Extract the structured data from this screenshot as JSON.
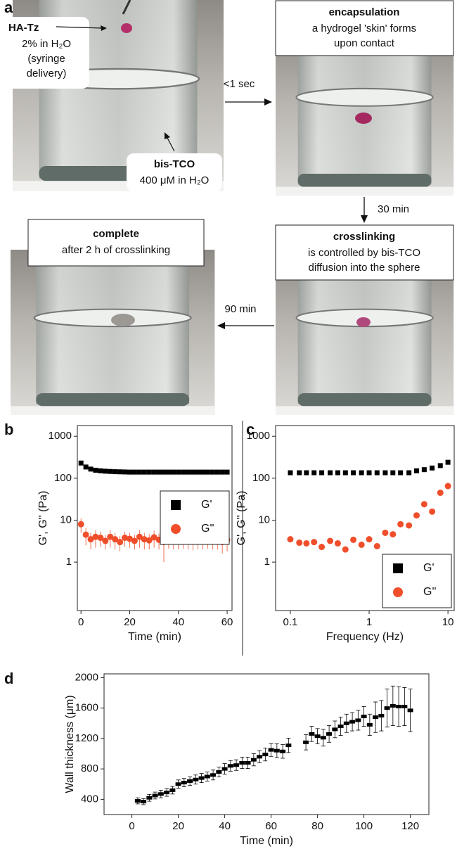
{
  "panel_a": {
    "label": "a",
    "sample": {
      "name": "HA-Tz",
      "lines": [
        "2% in H₂O",
        "(syringe",
        "delivery)"
      ]
    },
    "bath": {
      "name": "bis-TCO",
      "detail": "400 μM in H₂O"
    },
    "steps": [
      {
        "title": "encapsulation",
        "lines": [
          "a hydrogel 'skin' forms",
          "upon contact"
        ]
      },
      {
        "title": "crosslinking",
        "lines": [
          "is controlled by bis-TCO",
          "diffusion into the sphere"
        ]
      },
      {
        "title": "complete",
        "lines": [
          "after 2 h of crosslinking"
        ]
      }
    ],
    "arrows": [
      "<1 sec",
      "30 min",
      "90 min"
    ]
  },
  "chart_data": [
    {
      "type": "scatter",
      "panel": "b",
      "x_label": "Time (min)",
      "y_label": "G', G'' (Pa)",
      "xlim": [
        -1.5,
        62
      ],
      "xticks": [
        0,
        20,
        40,
        60
      ],
      "ylim": [
        0.07,
        1800
      ],
      "yticks": [
        1,
        10,
        100,
        1000
      ],
      "ylog": true,
      "legend": "right",
      "x": [
        0,
        2,
        4,
        6,
        8,
        10,
        12,
        14,
        16,
        18,
        20,
        22,
        24,
        26,
        28,
        30,
        32,
        34,
        36,
        38,
        40,
        42,
        44,
        46,
        48,
        50,
        52,
        54,
        56,
        58,
        60
      ],
      "series": [
        {
          "name": "G'",
          "color": "#000000",
          "marker": "square",
          "values": [
            230,
            185,
            165,
            155,
            150,
            147,
            145,
            143,
            142,
            141,
            140,
            140,
            140,
            140,
            140,
            140,
            140,
            140,
            140,
            140,
            140,
            140,
            140,
            140,
            140,
            140,
            140,
            140,
            140,
            140,
            140
          ]
        },
        {
          "name": "G''",
          "color": "#f04e2a",
          "marker": "circle",
          "values": [
            8,
            4.5,
            3.5,
            4,
            3.8,
            3.2,
            4,
            3.5,
            3,
            3.8,
            3.6,
            3.2,
            4,
            3.5,
            3.3,
            3.9,
            3.4,
            3,
            3.7,
            3.5,
            3.2,
            3.8,
            3.4,
            3.1,
            3.6,
            3.3,
            3.9,
            3.2,
            3.5,
            3,
            3.4
          ],
          "errors": [
            3,
            2,
            1.5,
            1.8,
            1.5,
            1.2,
            1.8,
            1.5,
            1.2,
            1.5,
            1.4,
            1.2,
            1.8,
            1.5,
            1.3,
            1.7,
            1.4,
            2,
            1.6,
            1.5,
            1.2,
            1.7,
            1.4,
            1.2,
            1.6,
            1.3,
            1.8,
            1.2,
            1.5,
            1.4,
            1.6
          ]
        }
      ]
    },
    {
      "type": "scatter",
      "panel": "c",
      "x_label": "Frequency (Hz)",
      "y_label": "G', G'' (Pa)",
      "xlim": [
        0.065,
        12
      ],
      "xticks": [
        0.1,
        1,
        10
      ],
      "xlog": true,
      "ylim": [
        0.07,
        1800
      ],
      "yticks": [
        1,
        10,
        100,
        1000
      ],
      "ylog": true,
      "legend": "lower right",
      "x": [
        0.1,
        0.13,
        0.16,
        0.2,
        0.25,
        0.32,
        0.4,
        0.5,
        0.63,
        0.8,
        1,
        1.26,
        1.6,
        2,
        2.5,
        3.2,
        4,
        5,
        6.3,
        8,
        10
      ],
      "series": [
        {
          "name": "G'",
          "color": "#000000",
          "marker": "square",
          "values": [
            135,
            135,
            135,
            135,
            135,
            135,
            135,
            135,
            135,
            135,
            135,
            135,
            135,
            135,
            135,
            135,
            150,
            160,
            175,
            200,
            240
          ]
        },
        {
          "name": "G''",
          "color": "#f04e2a",
          "marker": "circle",
          "values": [
            3.5,
            2.9,
            2.8,
            3,
            2.3,
            3.2,
            2.8,
            2,
            3.4,
            2.6,
            3.5,
            2.4,
            5,
            4.6,
            8,
            7.5,
            13,
            24,
            16,
            45,
            65
          ]
        }
      ]
    },
    {
      "type": "scatter",
      "panel": "d",
      "x_label": "Time (min)",
      "y_label": "Wall thickness (μm)",
      "xlim": [
        -12,
        128
      ],
      "xticks": [
        0,
        20,
        40,
        60,
        80,
        100,
        120
      ],
      "ylim": [
        200,
        2050
      ],
      "yticks": [
        400,
        800,
        1200,
        1600,
        2000
      ],
      "color": "#000000",
      "marker": "dash",
      "x": [
        2.5,
        5,
        7.5,
        10,
        12.5,
        15,
        17.5,
        20,
        22.5,
        25,
        27.5,
        30,
        32.5,
        35,
        37.5,
        40,
        42.5,
        45,
        47.5,
        50,
        52.5,
        55,
        57.5,
        60,
        62.5,
        65,
        67.5,
        75,
        77.5,
        80,
        82.5,
        85,
        87.5,
        90,
        92.5,
        95,
        97.5,
        100,
        102.5,
        105,
        107.5,
        110,
        112.5,
        115,
        117.5,
        120
      ],
      "values": [
        380,
        370,
        420,
        450,
        470,
        490,
        520,
        600,
        620,
        640,
        660,
        680,
        700,
        720,
        760,
        800,
        840,
        850,
        880,
        880,
        920,
        960,
        990,
        1050,
        1040,
        1030,
        1110,
        1150,
        1260,
        1230,
        1210,
        1260,
        1320,
        1360,
        1400,
        1420,
        1440,
        1490,
        1380,
        1480,
        1500,
        1600,
        1630,
        1620,
        1620,
        1570
      ],
      "errors": [
        40,
        40,
        45,
        45,
        50,
        50,
        50,
        55,
        55,
        55,
        60,
        60,
        60,
        65,
        65,
        70,
        70,
        70,
        75,
        75,
        80,
        80,
        85,
        85,
        90,
        90,
        95,
        100,
        100,
        100,
        110,
        110,
        110,
        120,
        120,
        120,
        130,
        130,
        140,
        200,
        200,
        250,
        260,
        260,
        250,
        280
      ]
    }
  ]
}
